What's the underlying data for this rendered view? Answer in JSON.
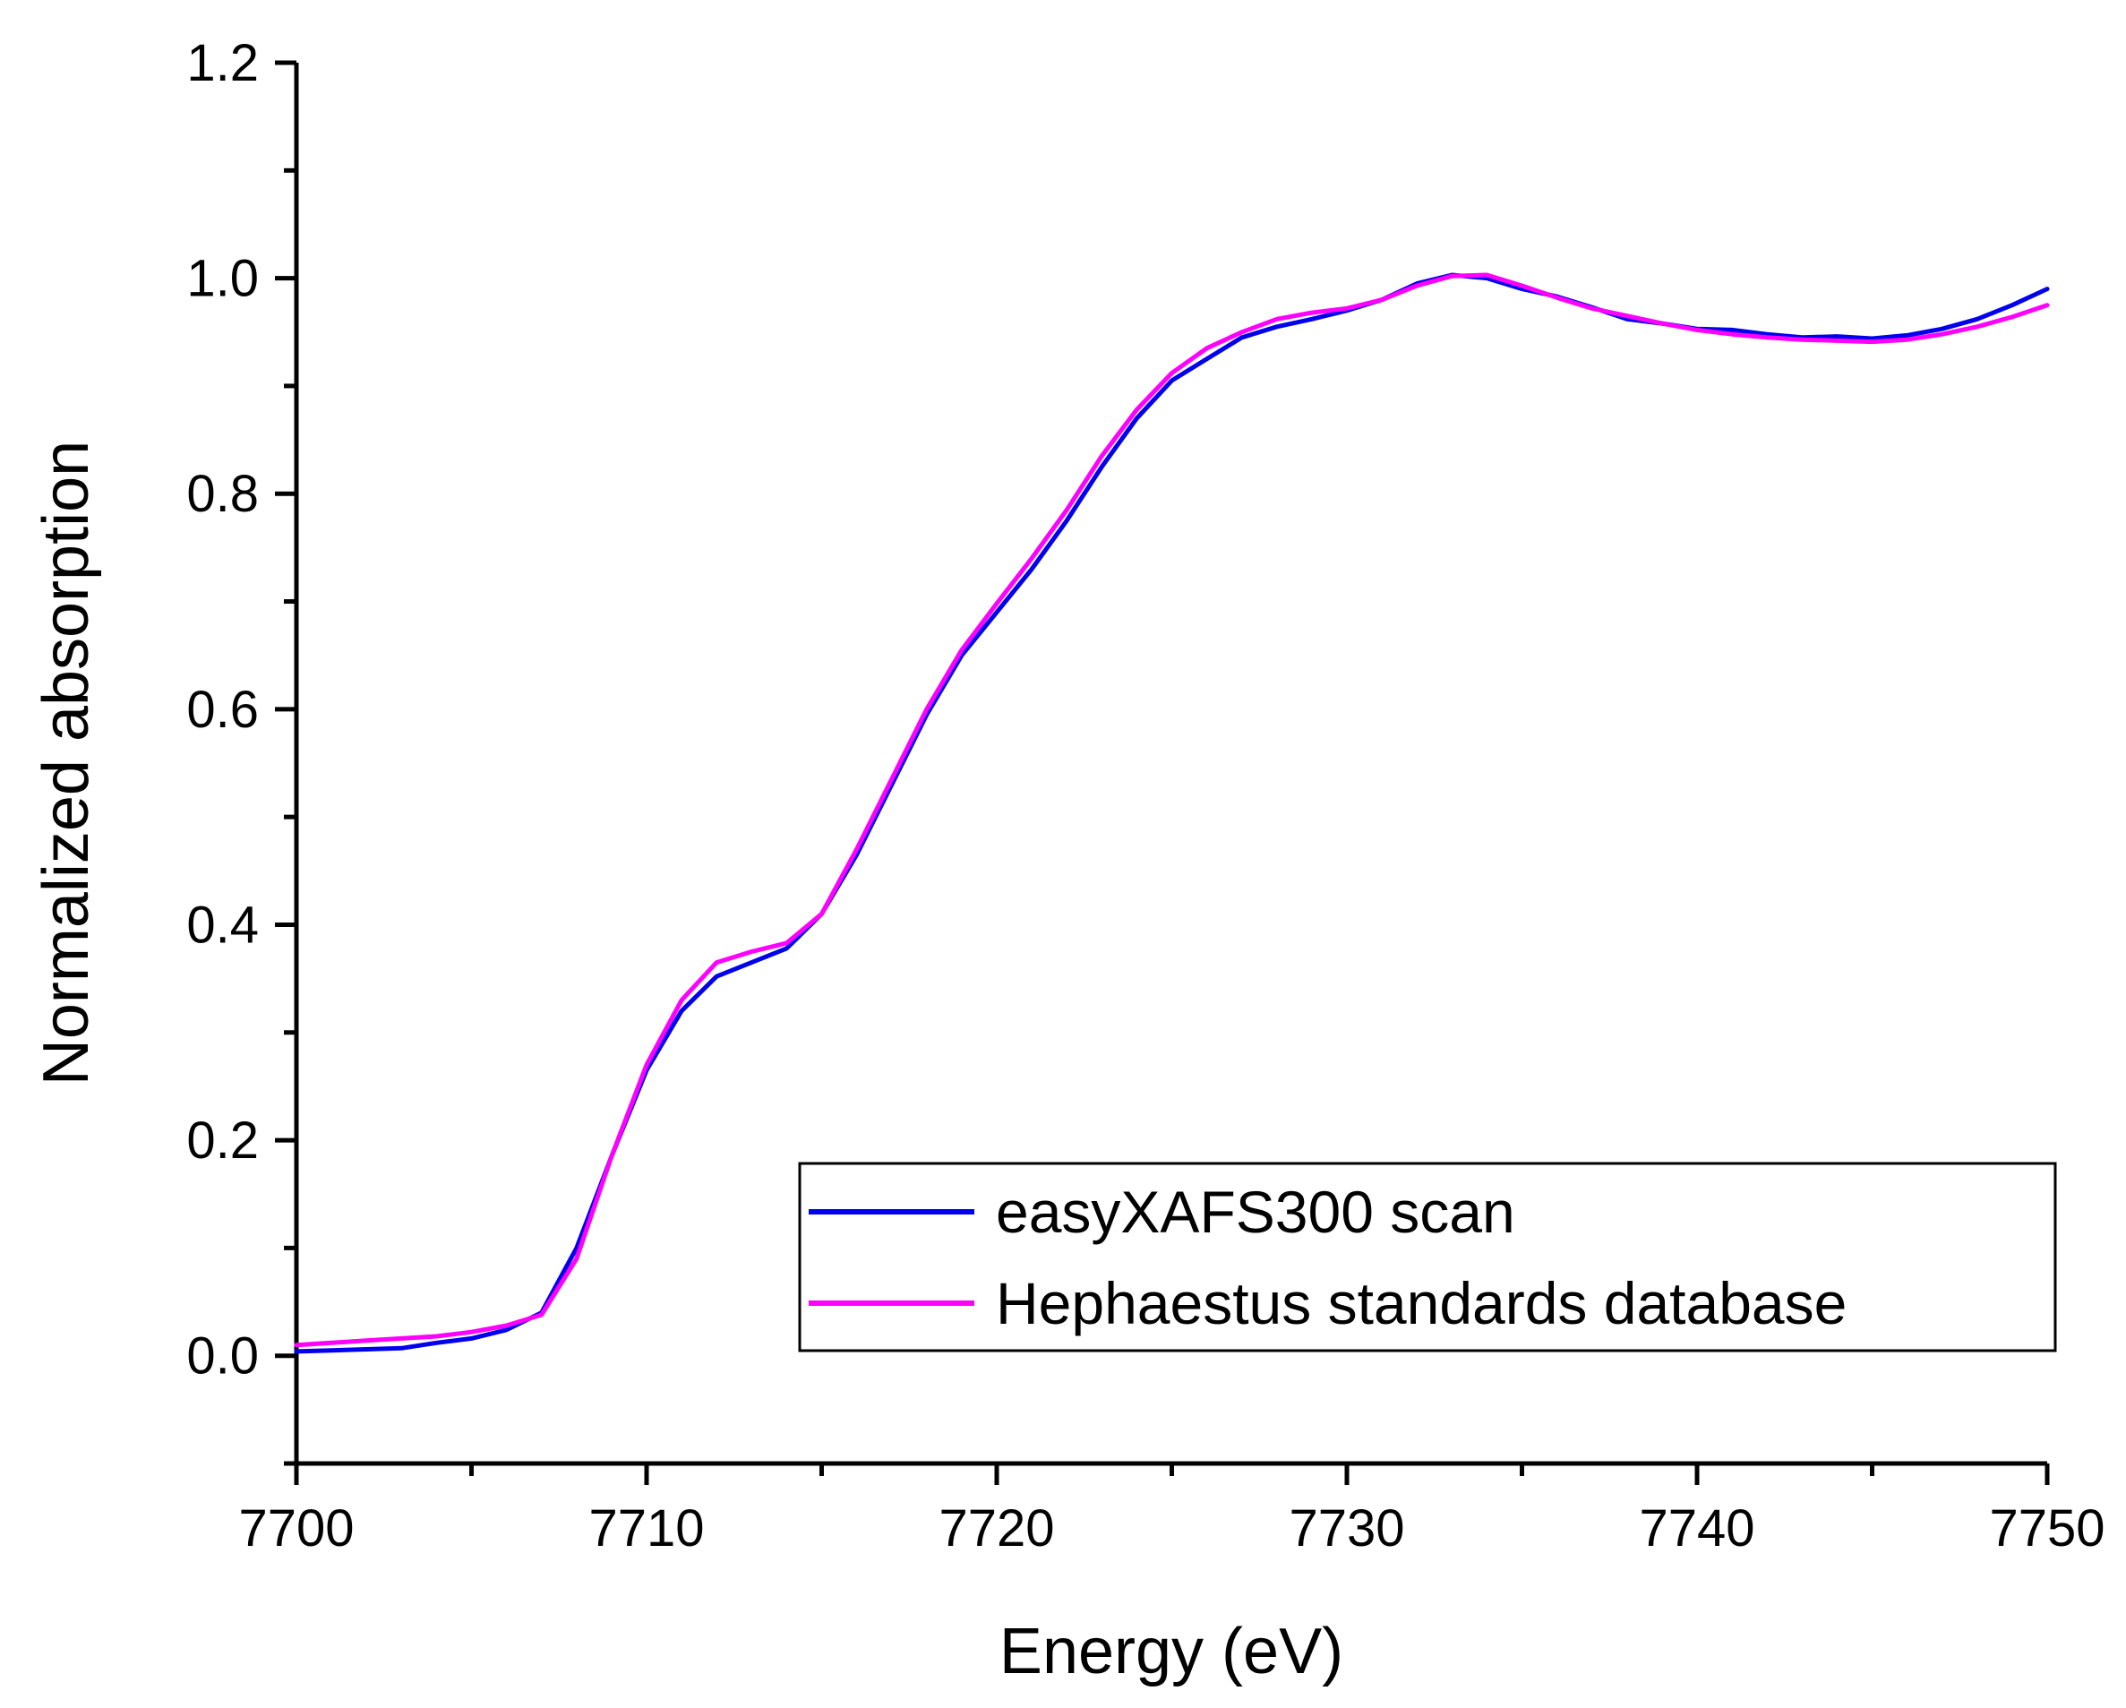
{
  "chart_data": {
    "type": "line",
    "title": "",
    "xlabel": "Energy (eV)",
    "ylabel": "Normalized absorption",
    "xlim": [
      7700,
      7750
    ],
    "ylim": [
      -0.1,
      1.2
    ],
    "x_ticks": [
      "7700",
      "7710",
      "7720",
      "7730",
      "7740",
      "7750"
    ],
    "y_ticks": [
      "0.0",
      "0.2",
      "0.4",
      "0.6",
      "0.8",
      "1.0",
      "1.2"
    ],
    "grid": false,
    "legend_position": "bottom-right",
    "series": [
      {
        "name": "easyXAFS300 scan",
        "color": "#0000ee",
        "x": [
          7700,
          7701,
          7702,
          7703,
          7704,
          7705,
          7706,
          7707,
          7708,
          7709,
          7710,
          7711,
          7712,
          7713,
          7714,
          7715,
          7716,
          7717,
          7718,
          7719,
          7720,
          7721,
          7722,
          7723,
          7724,
          7725,
          7726,
          7727,
          7728,
          7729,
          7730,
          7731,
          7732,
          7733,
          7734,
          7735,
          7736,
          7737,
          7738,
          7739,
          7740,
          7741,
          7742,
          7743,
          7744,
          7745,
          7746,
          7747,
          7748,
          7749,
          7750
        ],
        "y": [
          0.004,
          0.005,
          0.006,
          0.007,
          0.012,
          0.016,
          0.024,
          0.04,
          0.1,
          0.185,
          0.265,
          0.32,
          0.352,
          0.365,
          0.378,
          0.41,
          0.465,
          0.53,
          0.595,
          0.65,
          0.69,
          0.73,
          0.775,
          0.825,
          0.87,
          0.905,
          0.925,
          0.945,
          0.955,
          0.962,
          0.97,
          0.98,
          0.995,
          1.003,
          1.0,
          0.99,
          0.983,
          0.973,
          0.962,
          0.958,
          0.953,
          0.952,
          0.948,
          0.945,
          0.946,
          0.944,
          0.947,
          0.953,
          0.962,
          0.975,
          0.99
        ]
      },
      {
        "name": "Hephaestus standards database",
        "color": "#ff00ff",
        "x": [
          7700,
          7701,
          7702,
          7703,
          7704,
          7705,
          7706,
          7707,
          7708,
          7709,
          7710,
          7711,
          7712,
          7713,
          7714,
          7715,
          7716,
          7717,
          7718,
          7719,
          7720,
          7721,
          7722,
          7723,
          7724,
          7725,
          7726,
          7727,
          7728,
          7729,
          7730,
          7731,
          7732,
          7733,
          7734,
          7735,
          7736,
          7737,
          7738,
          7739,
          7740,
          7741,
          7742,
          7743,
          7744,
          7745,
          7746,
          7747,
          7748,
          7749,
          7750
        ],
        "y": [
          0.01,
          0.012,
          0.014,
          0.016,
          0.018,
          0.022,
          0.028,
          0.038,
          0.09,
          0.185,
          0.27,
          0.33,
          0.365,
          0.375,
          0.383,
          0.41,
          0.47,
          0.535,
          0.6,
          0.655,
          0.698,
          0.74,
          0.785,
          0.835,
          0.878,
          0.912,
          0.935,
          0.95,
          0.962,
          0.968,
          0.972,
          0.98,
          0.993,
          1.002,
          1.003,
          0.993,
          0.982,
          0.972,
          0.965,
          0.958,
          0.952,
          0.948,
          0.945,
          0.943,
          0.942,
          0.941,
          0.943,
          0.948,
          0.955,
          0.964,
          0.975
        ]
      }
    ]
  }
}
